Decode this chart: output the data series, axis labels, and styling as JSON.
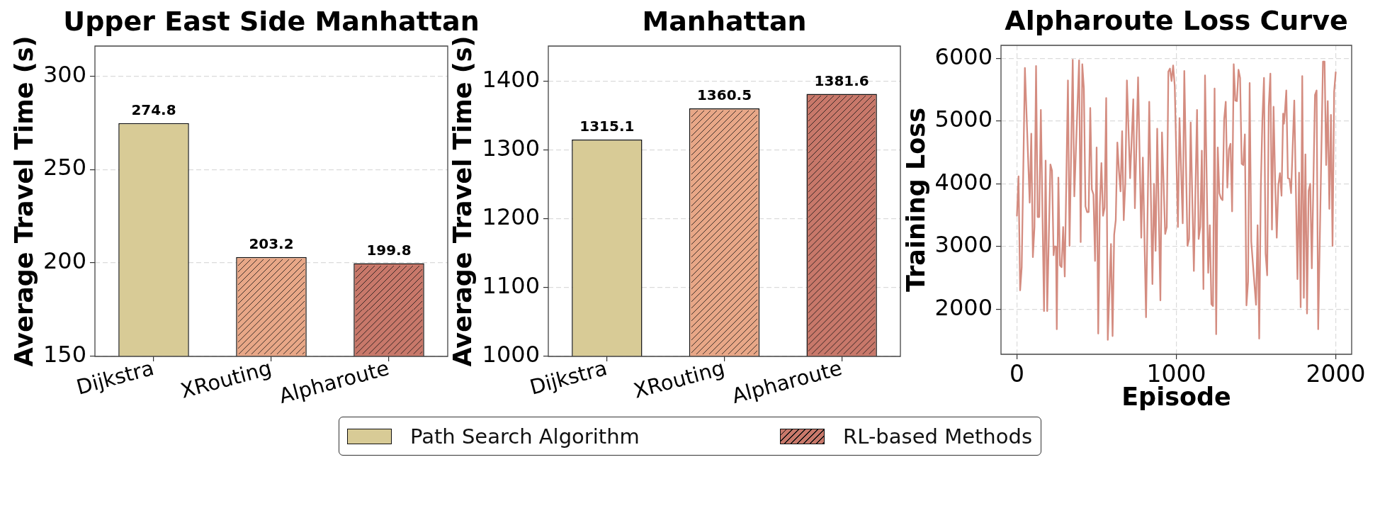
{
  "chart_data": [
    {
      "type": "bar",
      "title": "Upper East Side Manhattan",
      "ylabel": "Average Travel Time (s)",
      "categories": [
        "Dijkstra",
        "XRouting",
        "Alpharoute"
      ],
      "series": [
        {
          "color": "#d8cb96",
          "values": [
            274.8,
            null,
            null
          ]
        },
        {
          "colors": [
            null,
            "#e8a787",
            "#c8786a"
          ],
          "values": [
            null,
            203.2,
            199.8
          ]
        }
      ],
      "ylim": [
        150,
        316
      ],
      "yticks": [
        150,
        200,
        250,
        300
      ],
      "grid": "y",
      "data_labels": true
    },
    {
      "type": "bar",
      "title": "Manhattan",
      "ylabel": "Average Travel Time (s)",
      "categories": [
        "Dijkstra",
        "XRouting",
        "Alpharoute"
      ],
      "series": [
        {
          "name": "Path Search Algorithm",
          "color": "#d8cb96",
          "values": [
            1315.1,
            null,
            null
          ]
        },
        {
          "name": "RL-based Methods",
          "colors": [
            null,
            "#e8a787",
            "#c8786a"
          ],
          "values": [
            null,
            1360.5,
            1381.6
          ]
        }
      ],
      "ylim": [
        1000,
        1451
      ],
      "yticks": [
        1000,
        1100,
        1200,
        1300,
        1400
      ],
      "grid": "y",
      "data_labels": true,
      "legend": "bottom"
    },
    {
      "type": "line",
      "title": "Alpharoute Loss Curve",
      "xlabel": "Episode",
      "ylabel": "Training Loss",
      "x": [
        0,
        10,
        20,
        30,
        50,
        80,
        90,
        100,
        110,
        120,
        130,
        140,
        150,
        170,
        180,
        190,
        210,
        220,
        230,
        235,
        245,
        250,
        260,
        270,
        280,
        290,
        300,
        320,
        330,
        350,
        360,
        375,
        390,
        400,
        410,
        420,
        430,
        440,
        450,
        460,
        470,
        480,
        490,
        500,
        510,
        520,
        530,
        540,
        550,
        560,
        570,
        590,
        600,
        610,
        620,
        630,
        640,
        650,
        660,
        670,
        680,
        690,
        710,
        730,
        740,
        760,
        770,
        780,
        790,
        810,
        830,
        850,
        860,
        870,
        880,
        900,
        910,
        930,
        940,
        950,
        960,
        970,
        980,
        990,
        1010,
        1020,
        1040,
        1050,
        1070,
        1080,
        1090,
        1110,
        1130,
        1140,
        1150,
        1160,
        1170,
        1180,
        1200,
        1210,
        1220,
        1230,
        1240,
        1250,
        1260,
        1270,
        1280,
        1290,
        1300,
        1310,
        1320,
        1330,
        1340,
        1350,
        1360,
        1370,
        1380,
        1390,
        1400,
        1410,
        1420,
        1430,
        1440,
        1450,
        1460,
        1470,
        1490,
        1500,
        1510,
        1520,
        1530,
        1540,
        1550,
        1560,
        1570,
        1580,
        1590,
        1600,
        1610,
        1620,
        1630,
        1640,
        1650,
        1660,
        1670,
        1675,
        1680,
        1690,
        1700,
        1710,
        1720,
        1740,
        1760,
        1770,
        1780,
        1790,
        1800,
        1810,
        1820,
        1830,
        1840,
        1850,
        1870,
        1880,
        1890,
        1920,
        1930,
        1940,
        1950,
        1960,
        1970,
        1980,
        1990,
        2000
      ],
      "series": [
        {
          "color": "#d48c80",
          "values": [
            3490,
            4120,
            2300,
            2670,
            5850,
            3700,
            4800,
            2830,
            3310,
            5880,
            3470,
            3470,
            5180,
            1970,
            4370,
            1970,
            4310,
            4210,
            2860,
            3000,
            3000,
            1680,
            4100,
            2700,
            2670,
            3310,
            2520,
            5650,
            3010,
            5980,
            3800,
            4900,
            5970,
            3070,
            5910,
            5520,
            3640,
            3550,
            3550,
            5210,
            3910,
            3830,
            2770,
            4580,
            1610,
            3640,
            4330,
            3490,
            3620,
            5370,
            1510,
            3040,
            1570,
            3190,
            3420,
            4660,
            4210,
            3880,
            4840,
            3420,
            4020,
            5650,
            4090,
            5350,
            3610,
            5700,
            4430,
            3140,
            4420,
            1870,
            5310,
            2400,
            4000,
            2930,
            4880,
            2140,
            4820,
            3200,
            3310,
            5790,
            5840,
            5640,
            5890,
            5560,
            3310,
            5050,
            3370,
            5800,
            3010,
            3120,
            4980,
            2610,
            5180,
            3120,
            3310,
            4530,
            2320,
            5730,
            2580,
            3340,
            2080,
            2050,
            5520,
            1600,
            4580,
            3850,
            3770,
            3740,
            5030,
            5310,
            3940,
            4550,
            4640,
            3560,
            5910,
            5330,
            5320,
            5820,
            5690,
            4320,
            4300,
            4790,
            2060,
            2440,
            5610,
            3080,
            2400,
            2070,
            3340,
            1530,
            3940,
            5030,
            5690,
            2890,
            2540,
            5240,
            5760,
            3270,
            5230,
            4040,
            3140,
            3980,
            4170,
            3810,
            5120,
            4960,
            5100,
            5490,
            4090,
            4080,
            3850,
            5330,
            2480,
            4180,
            2030,
            5720,
            2180,
            4470,
            1930,
            3890,
            4000,
            2650,
            5420,
            5490,
            1680,
            5950,
            5950,
            4300,
            5320,
            3600,
            5100,
            3010,
            5470,
            5780
          ]
        }
      ],
      "xlim": [
        -100,
        2100
      ],
      "xticks": [
        0,
        1000,
        2000
      ],
      "ylim": [
        1280,
        6210
      ],
      "yticks": [
        2000,
        3000,
        4000,
        5000,
        6000
      ],
      "grid": true
    }
  ]
}
